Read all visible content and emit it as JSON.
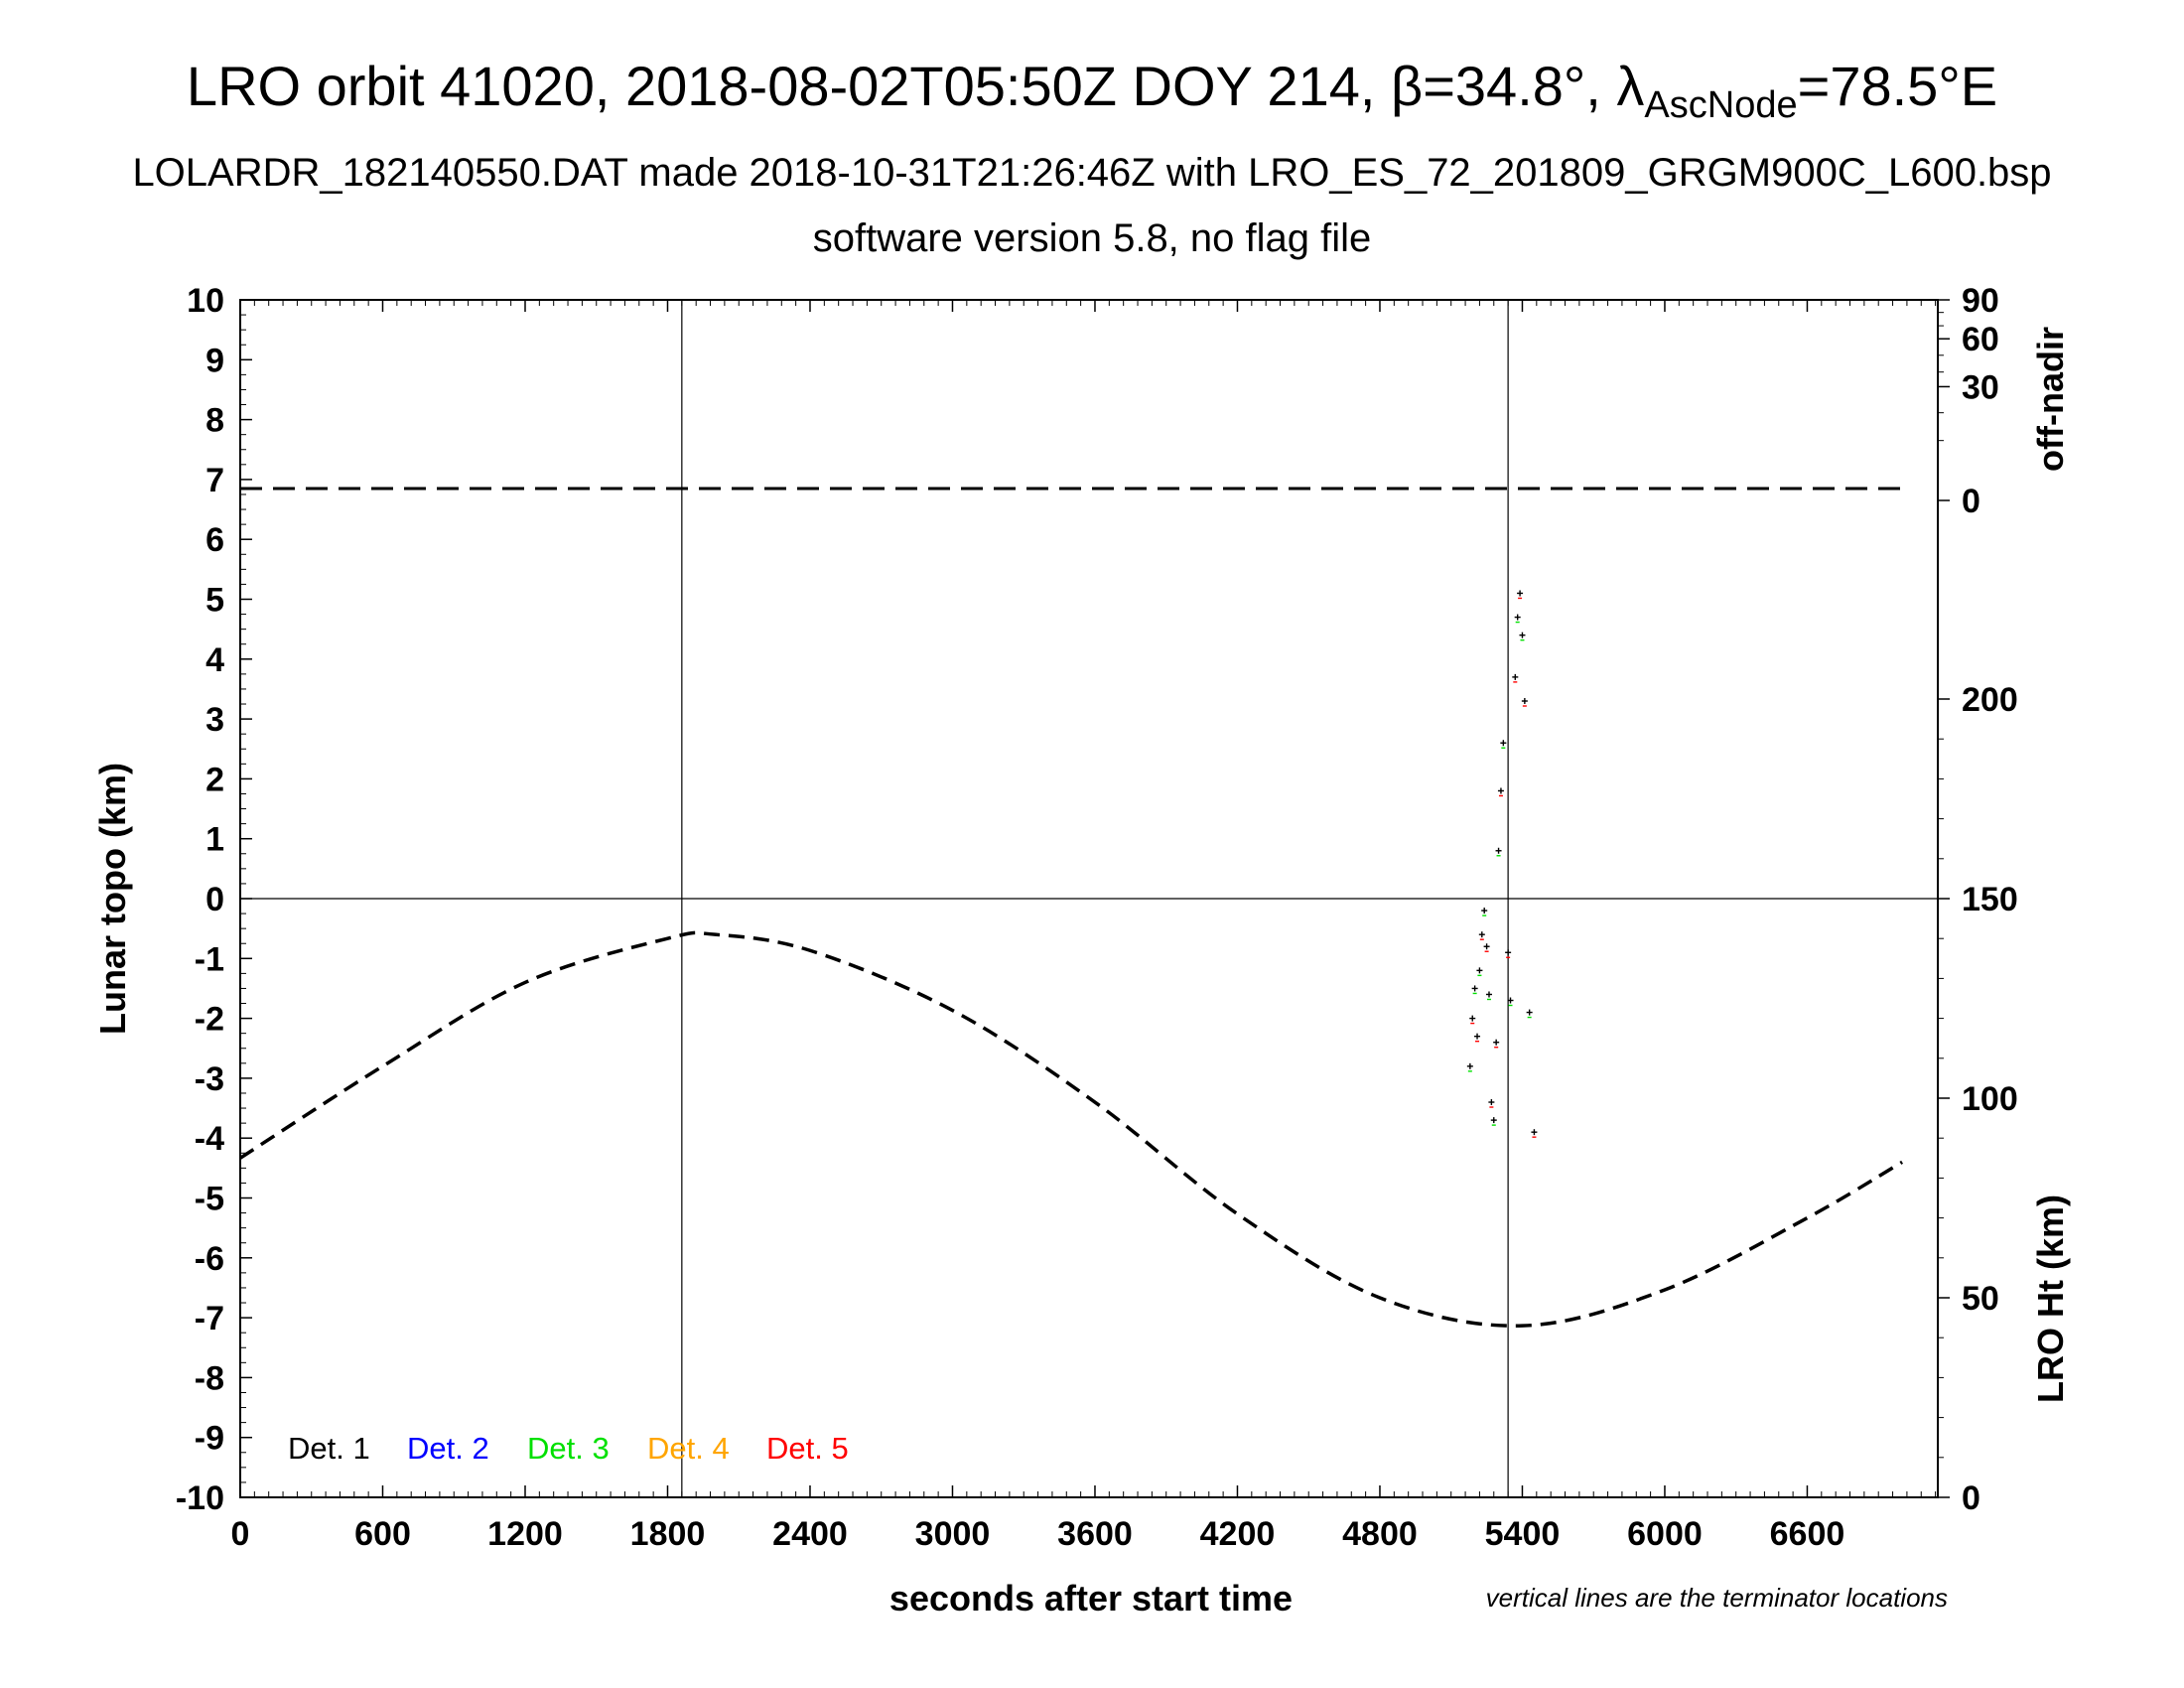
{
  "title": {
    "main_prefix": "LRO orbit 41020, 2018-08-02T05:50Z DOY 214, ",
    "beta_symbol": "β",
    "beta_value": "=34.8°, ",
    "lambda_symbol": "λ",
    "lambda_subscript": "AscNode",
    "lambda_value": "=78.5°E",
    "line2": "LOLARDR_182140550.DAT made 2018-10-31T21:26:46Z with LRO_ES_72_201809_GRGM900C_L600.bsp",
    "line3": "software version 5.8, no flag file"
  },
  "chart_data": {
    "type": "scatter",
    "xlabel": "seconds after start time",
    "ylabel": "Lunar topo (km)",
    "right_label_top": "off-nadir",
    "right_label_bottom": "LRO Ht (km)",
    "note": "vertical lines are the terminator locations",
    "xlim": [
      0,
      7150
    ],
    "ylim": [
      -10,
      10
    ],
    "x_ticks": [
      "0",
      "600",
      "1200",
      "1800",
      "2400",
      "3000",
      "3600",
      "4200",
      "4800",
      "5400",
      "6000",
      "6600"
    ],
    "y_ticks": [
      "-10",
      "-9",
      "-8",
      "-7",
      "-6",
      "-5",
      "-4",
      "-3",
      "-2",
      "-1",
      "0",
      "1",
      "2",
      "3",
      "4",
      "5",
      "6",
      "7",
      "8",
      "9",
      "10"
    ],
    "off_nadir_ticks": [
      {
        "label": "90",
        "value": 90,
        "y_km": 10.0
      },
      {
        "label": "60",
        "value": 60,
        "y_km": 9.35
      },
      {
        "label": "30",
        "value": 30,
        "y_km": 8.55
      },
      {
        "label": "0",
        "value": 0,
        "y_km": 6.65
      }
    ],
    "height_ticks": [
      {
        "label": "200",
        "value": 200
      },
      {
        "label": "150",
        "value": 150
      },
      {
        "label": "100",
        "value": 100
      },
      {
        "label": "50",
        "value": 50
      },
      {
        "label": "0",
        "value": 0
      }
    ],
    "height_axis_km_range": [
      0,
      300
    ],
    "terminators_s": [
      1860,
      5340
    ],
    "off_nadir_deg": 0,
    "off_nadir_line_y_km": 6.85,
    "lro_height_km": [
      {
        "x": 0,
        "h": 85
      },
      {
        "x": 600,
        "h": 108
      },
      {
        "x": 1200,
        "h": 129
      },
      {
        "x": 1800,
        "h": 140
      },
      {
        "x": 2000,
        "h": 141
      },
      {
        "x": 2400,
        "h": 137
      },
      {
        "x": 3000,
        "h": 122
      },
      {
        "x": 3600,
        "h": 99
      },
      {
        "x": 4200,
        "h": 71
      },
      {
        "x": 4800,
        "h": 50
      },
      {
        "x": 5400,
        "h": 43
      },
      {
        "x": 6000,
        "h": 52
      },
      {
        "x": 6600,
        "h": 70
      },
      {
        "x": 7000,
        "h": 84
      }
    ],
    "topo_km": [
      {
        "x": 5180,
        "y": -2.8
      },
      {
        "x": 5190,
        "y": -2.0
      },
      {
        "x": 5200,
        "y": -1.5
      },
      {
        "x": 5210,
        "y": -2.3
      },
      {
        "x": 5220,
        "y": -1.2
      },
      {
        "x": 5230,
        "y": -0.6
      },
      {
        "x": 5240,
        "y": -0.2
      },
      {
        "x": 5250,
        "y": -0.8
      },
      {
        "x": 5260,
        "y": -1.6
      },
      {
        "x": 5270,
        "y": -3.4
      },
      {
        "x": 5280,
        "y": -3.7
      },
      {
        "x": 5290,
        "y": -2.4
      },
      {
        "x": 5300,
        "y": 0.8
      },
      {
        "x": 5310,
        "y": 1.8
      },
      {
        "x": 5320,
        "y": 2.6
      },
      {
        "x": 5340,
        "y": -0.9
      },
      {
        "x": 5350,
        "y": -1.7
      },
      {
        "x": 5370,
        "y": 3.7
      },
      {
        "x": 5380,
        "y": 4.7
      },
      {
        "x": 5390,
        "y": 5.1
      },
      {
        "x": 5400,
        "y": 4.4
      },
      {
        "x": 5410,
        "y": 3.3
      },
      {
        "x": 5430,
        "y": -1.9
      },
      {
        "x": 5450,
        "y": -3.9
      }
    ],
    "legend": [
      {
        "name": "Det. 1",
        "color": "#000000"
      },
      {
        "name": "Det. 2",
        "color": "#0000ff"
      },
      {
        "name": "Det. 3",
        "color": "#00e000"
      },
      {
        "name": "Det. 4",
        "color": "#ffa500"
      },
      {
        "name": "Det. 5",
        "color": "#ff0000"
      }
    ]
  }
}
